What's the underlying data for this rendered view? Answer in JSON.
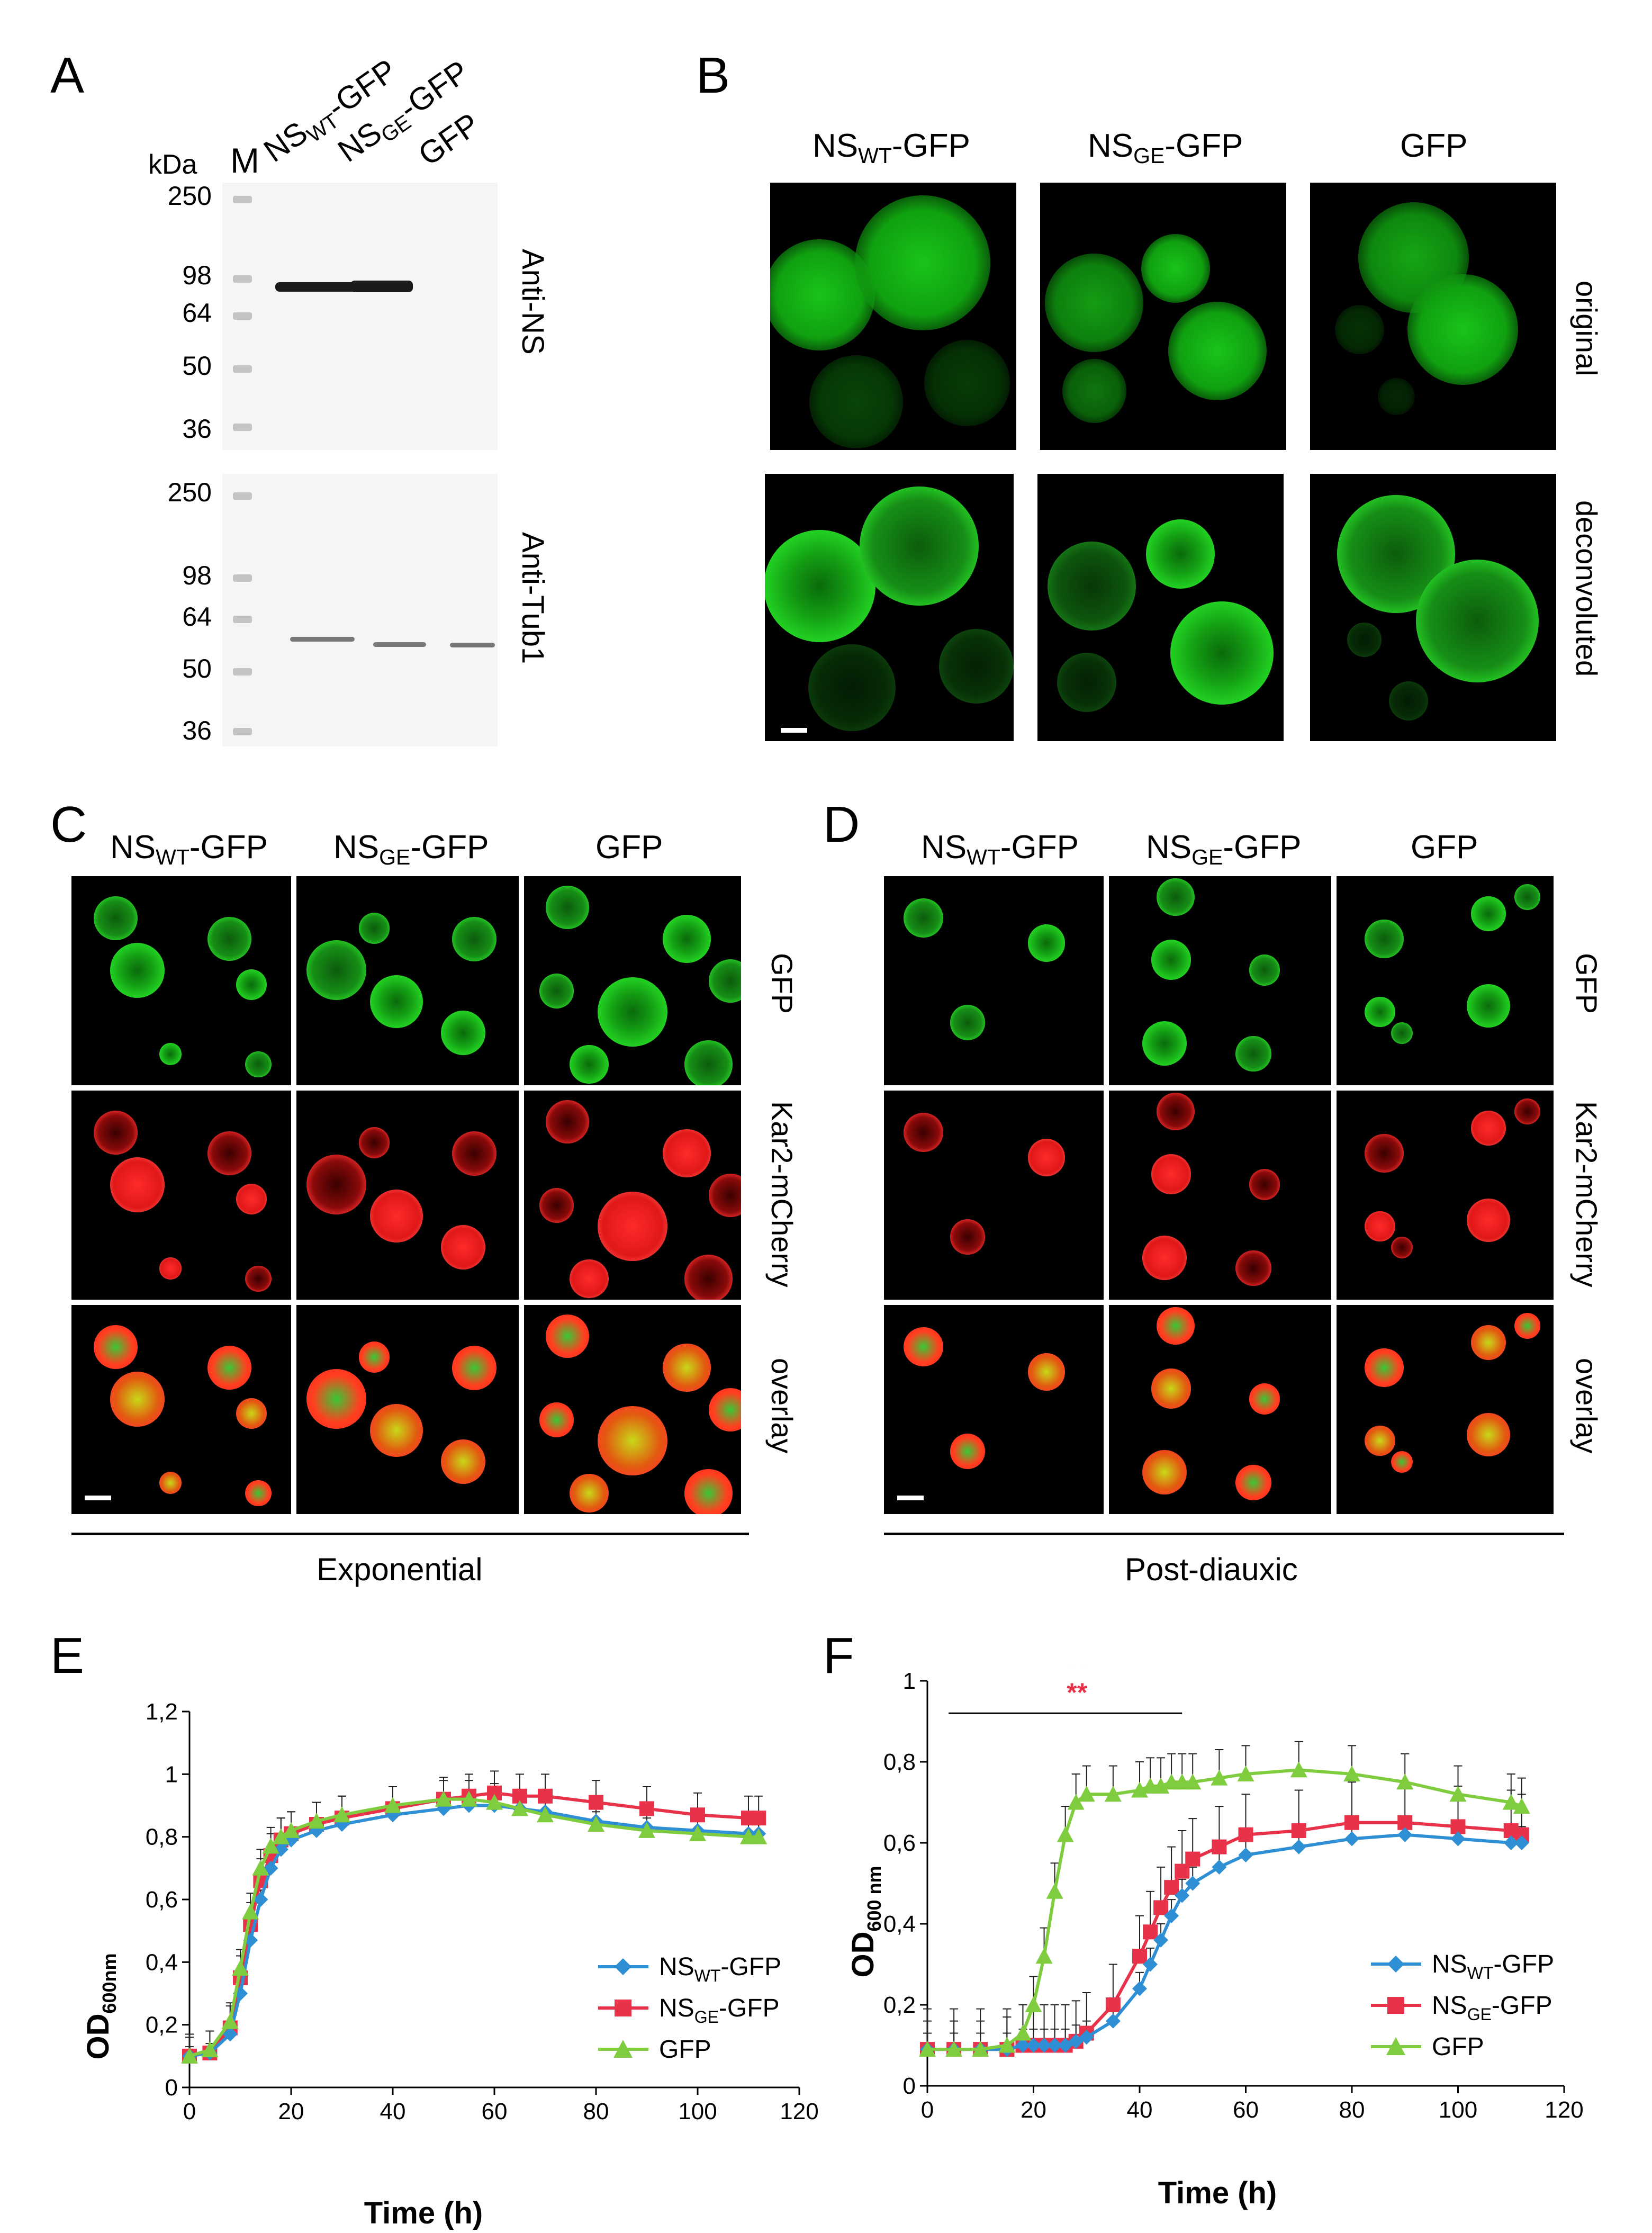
{
  "panels": {
    "a": "A",
    "b": "B",
    "c": "C",
    "d": "D",
    "e": "E",
    "f": "F"
  },
  "panel_a": {
    "kda": "kDa",
    "marker": "M",
    "lanes": [
      {
        "main": "NS",
        "sub": "WT",
        "tail": "-GFP"
      },
      {
        "main": "NS",
        "sub": "GE",
        "tail": "-GFP"
      },
      {
        "main": "GFP",
        "sub": "",
        "tail": ""
      }
    ],
    "blot_top_label": "Anti-NS",
    "blot_bottom_label": "Anti-Tub1",
    "mw_top": [
      "250",
      "98",
      "64",
      "50",
      "36"
    ],
    "mw_bottom": [
      "250",
      "98",
      "64",
      "50",
      "36"
    ]
  },
  "panel_b": {
    "columns": [
      {
        "main": "NS",
        "sub": "WT",
        "tail": "-GFP"
      },
      {
        "main": "NS",
        "sub": "GE",
        "tail": "-GFP"
      },
      {
        "main": "GFP",
        "sub": "",
        "tail": ""
      }
    ],
    "rows": [
      "original",
      "deconvoluted"
    ]
  },
  "panel_c": {
    "columns": [
      {
        "main": "NS",
        "sub": "WT",
        "tail": "-GFP"
      },
      {
        "main": "NS",
        "sub": "GE",
        "tail": "-GFP"
      },
      {
        "main": "GFP",
        "sub": "",
        "tail": ""
      }
    ],
    "rows": [
      "GFP",
      "Kar2-mCherry",
      "overlay"
    ],
    "phase": "Exponential"
  },
  "panel_d": {
    "columns": [
      {
        "main": "NS",
        "sub": "WT",
        "tail": "-GFP"
      },
      {
        "main": "NS",
        "sub": "GE",
        "tail": "-GFP"
      },
      {
        "main": "GFP",
        "sub": "",
        "tail": ""
      }
    ],
    "rows": [
      "GFP",
      "Kar2-mCherry",
      "overlay"
    ],
    "phase": "Post-diauxic"
  },
  "colors": {
    "nswt": "#2e8fd4",
    "nsge": "#e8324a",
    "gfp": "#7fcc3f",
    "star_blue": "#1fb6e6",
    "star_red": "#e8324a"
  },
  "chart_data": [
    {
      "panel": "E",
      "type": "line",
      "xlabel": "Time (h)",
      "ylabel": {
        "main": "OD",
        "sub": "600nm"
      },
      "xlim": [
        0,
        120
      ],
      "ylim": [
        0,
        1.2
      ],
      "x_ticks": [
        "0",
        "20",
        "40",
        "60",
        "80",
        "100",
        "120"
      ],
      "y_ticks": [
        "0",
        "0,2",
        "0,4",
        "0,6",
        "0,8",
        "1",
        "1,2"
      ],
      "x": [
        0,
        4,
        8,
        10,
        12,
        14,
        16,
        18,
        20,
        25,
        30,
        40,
        50,
        55,
        60,
        65,
        70,
        80,
        90,
        100,
        110,
        112
      ],
      "series": [
        {
          "name": {
            "main": "NS",
            "sub": "WT",
            "tail": "-GFP"
          },
          "marker": "diamond",
          "values": [
            0.1,
            0.11,
            0.17,
            0.3,
            0.47,
            0.6,
            0.7,
            0.76,
            0.79,
            0.82,
            0.84,
            0.87,
            0.89,
            0.9,
            0.9,
            0.89,
            0.88,
            0.85,
            0.83,
            0.82,
            0.81,
            0.81
          ],
          "error": 0.03
        },
        {
          "name": {
            "main": "NS",
            "sub": "GE",
            "tail": "-GFP"
          },
          "marker": "square",
          "values": [
            0.1,
            0.11,
            0.19,
            0.35,
            0.52,
            0.66,
            0.74,
            0.79,
            0.81,
            0.84,
            0.86,
            0.89,
            0.92,
            0.93,
            0.94,
            0.93,
            0.93,
            0.91,
            0.89,
            0.87,
            0.86,
            0.86
          ],
          "error": 0.07
        },
        {
          "name": {
            "main": "GFP",
            "sub": "",
            "tail": ""
          },
          "marker": "triangle",
          "values": [
            0.1,
            0.12,
            0.21,
            0.38,
            0.56,
            0.7,
            0.77,
            0.8,
            0.82,
            0.85,
            0.87,
            0.9,
            0.92,
            0.92,
            0.91,
            0.89,
            0.87,
            0.84,
            0.82,
            0.81,
            0.8,
            0.8
          ],
          "error": 0.06
        }
      ],
      "legend_position": "bottom-right"
    },
    {
      "panel": "F",
      "type": "line",
      "xlabel": "Time (h)",
      "ylabel": {
        "main": "OD",
        "sub": "600 nm"
      },
      "xlim": [
        0,
        120
      ],
      "ylim": [
        0,
        1
      ],
      "x_ticks": [
        "0",
        "20",
        "40",
        "60",
        "80",
        "100",
        "120"
      ],
      "y_ticks": [
        "0",
        "0,2",
        "0,4",
        "0,6",
        "0,8",
        "1"
      ],
      "x": [
        0,
        5,
        10,
        15,
        18,
        20,
        22,
        24,
        26,
        28,
        30,
        35,
        40,
        42,
        44,
        46,
        48,
        50,
        55,
        60,
        70,
        80,
        90,
        100,
        110,
        112
      ],
      "series": [
        {
          "name": {
            "main": "NS",
            "sub": "WT",
            "tail": "-GFP"
          },
          "marker": "diamond",
          "values": [
            0.09,
            0.09,
            0.09,
            0.09,
            0.1,
            0.1,
            0.1,
            0.1,
            0.1,
            0.11,
            0.12,
            0.16,
            0.24,
            0.3,
            0.36,
            0.42,
            0.47,
            0.5,
            0.54,
            0.57,
            0.59,
            0.61,
            0.62,
            0.61,
            0.6,
            0.6
          ],
          "error": 0.04
        },
        {
          "name": {
            "main": "NS",
            "sub": "GE",
            "tail": "-GFP"
          },
          "marker": "square",
          "values": [
            0.09,
            0.09,
            0.09,
            0.09,
            0.1,
            0.1,
            0.1,
            0.1,
            0.1,
            0.11,
            0.13,
            0.2,
            0.32,
            0.38,
            0.44,
            0.49,
            0.53,
            0.56,
            0.59,
            0.62,
            0.63,
            0.65,
            0.65,
            0.64,
            0.63,
            0.62
          ],
          "error": 0.1
        },
        {
          "name": {
            "main": "GFP",
            "sub": "",
            "tail": ""
          },
          "marker": "triangle",
          "values": [
            0.09,
            0.09,
            0.09,
            0.1,
            0.13,
            0.2,
            0.32,
            0.48,
            0.62,
            0.7,
            0.72,
            0.72,
            0.73,
            0.74,
            0.74,
            0.75,
            0.75,
            0.75,
            0.76,
            0.77,
            0.78,
            0.77,
            0.75,
            0.72,
            0.7,
            0.69
          ],
          "error": 0.07
        }
      ],
      "significance": {
        "text": "**",
        "x_range": [
          4,
          48
        ],
        "y": 0.92
      },
      "legend_position": "bottom-right"
    }
  ]
}
